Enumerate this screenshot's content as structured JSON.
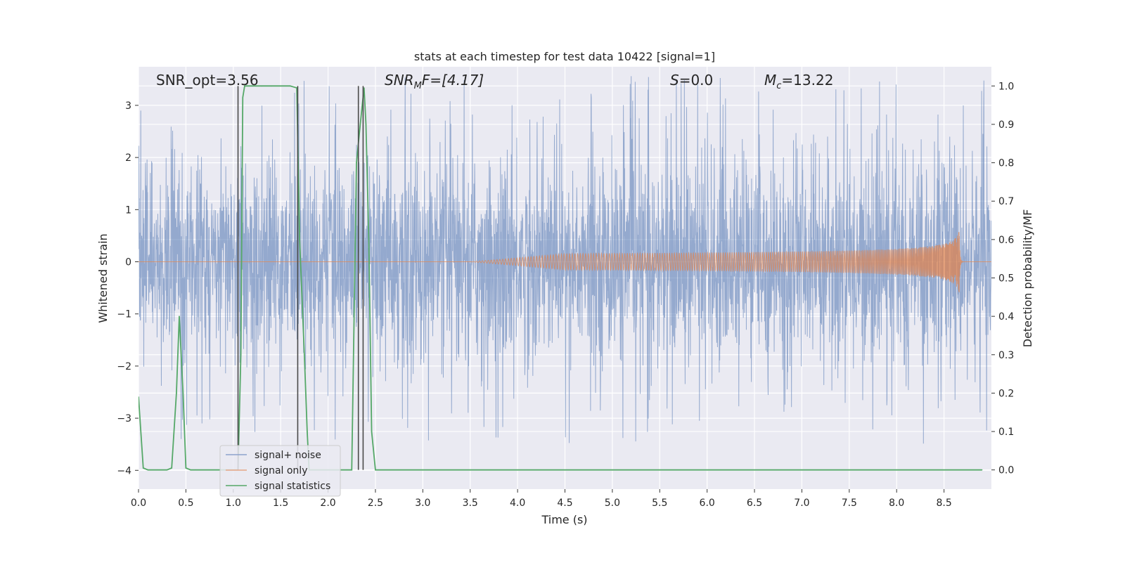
{
  "chart_data": {
    "type": "line",
    "title": "stats at each timestep for test data 10422 [signal=1]",
    "xlabel": "Time (s)",
    "ylabel_left": "Whitened strain",
    "ylabel_right": "Detection probability/MF",
    "xlim": [
      0,
      9.0
    ],
    "ylim_left": [
      -4.36,
      3.74
    ],
    "ylim_right": [
      -0.05,
      1.05
    ],
    "x_ticks": [
      "0.0",
      "0.5",
      "1.0",
      "1.5",
      "2.0",
      "2.5",
      "3.0",
      "3.5",
      "4.0",
      "4.5",
      "5.0",
      "5.5",
      "6.0",
      "6.5",
      "7.0",
      "7.5",
      "8.0",
      "8.5"
    ],
    "y_ticks_left": [
      "3",
      "2",
      "1",
      "0",
      "−1",
      "−2",
      "−3",
      "−4"
    ],
    "y_ticks_right": [
      "1.0",
      "0.9",
      "0.8",
      "0.7",
      "0.6",
      "0.5",
      "0.4",
      "0.3",
      "0.2",
      "0.1",
      "0.0"
    ],
    "grid": true,
    "annotations": {
      "snr_opt": "SNR_opt=3.56",
      "snr_mf_base": "SNR",
      "snr_mf_sub": "M",
      "snr_mf_rest": "F=[4.17]",
      "s_sym": "S",
      "s_val": "=0.0",
      "mc_sym": "M",
      "mc_sub": "c",
      "mc_val": "=13.22"
    },
    "legend": {
      "placement": "lower-left",
      "entries": [
        "signal+ noise",
        "signal only",
        "signal statistics"
      ]
    },
    "series": [
      {
        "name": "signal+ noise",
        "axis": "left",
        "color": "#4c72b0",
        "style": "noise",
        "core_amplitude": 1.8,
        "spike_amplitude": 3.56
      },
      {
        "name": "signal only",
        "axis": "left",
        "color": "#dd8452",
        "style": "chirp",
        "start": 3.5,
        "merger": 8.66,
        "peak_amplitude": 0.6
      },
      {
        "name": "signal statistics",
        "axis": "right",
        "color": "#55a868",
        "x": [
          0.0,
          0.05,
          0.1,
          0.2,
          0.3,
          0.35,
          0.4,
          0.43,
          0.47,
          0.5,
          0.55,
          0.6,
          0.7,
          0.8,
          0.9,
          1.0,
          1.05,
          1.08,
          1.1,
          1.12,
          1.2,
          1.3,
          1.4,
          1.5,
          1.6,
          1.67,
          1.7,
          1.75,
          1.78,
          1.8,
          1.9,
          2.0,
          2.1,
          2.2,
          2.25,
          2.3,
          2.34,
          2.38,
          2.4,
          2.43,
          2.46,
          2.5,
          2.6,
          3.0,
          4.0,
          5.0,
          6.0,
          7.0,
          8.0,
          8.9
        ],
        "y": [
          0.19,
          0.005,
          0.0,
          0.0,
          0.0,
          0.005,
          0.2,
          0.4,
          0.2,
          0.005,
          0.0,
          0.0,
          0.0,
          0.0,
          0.0,
          0.0,
          0.0,
          0.3,
          0.97,
          1.0,
          1.0,
          1.0,
          1.0,
          1.0,
          1.0,
          0.995,
          0.6,
          0.3,
          0.1,
          0.0,
          0.0,
          0.0,
          0.0,
          0.0,
          0.0,
          0.8,
          0.9,
          0.995,
          0.9,
          0.6,
          0.1,
          0.0,
          0.0,
          0.0,
          0.0,
          0.0,
          0.0,
          0.0,
          0.0,
          0.0
        ]
      },
      {
        "name": "event markers",
        "axis": "right",
        "color": "#4a4a4a",
        "style": "vlines",
        "x": [
          1.05,
          1.68,
          2.32,
          2.37
        ],
        "y_range": [
          0.0,
          1.0
        ]
      }
    ]
  }
}
